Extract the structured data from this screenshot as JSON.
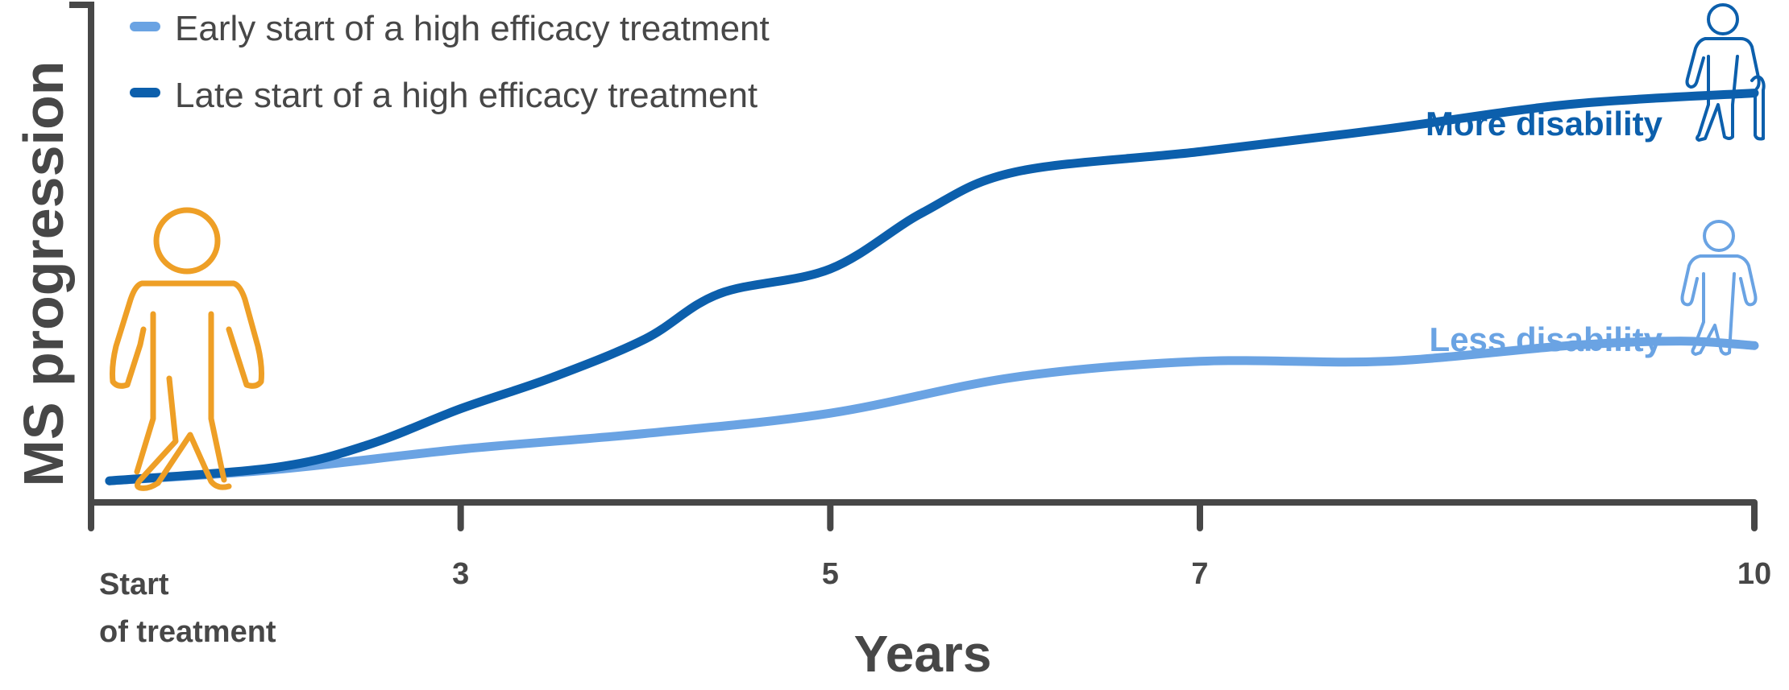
{
  "chart_data": {
    "type": "line",
    "title": "",
    "xlabel": "Years",
    "ylabel": "MS progression",
    "xlim": [
      1,
      10
    ],
    "ylim": [
      0,
      10
    ],
    "x_ticks": [
      {
        "value": 1,
        "label": "Start of treatment",
        "lines": [
          "Start",
          "of treatment"
        ]
      },
      {
        "value": 3,
        "label": "3"
      },
      {
        "value": 5,
        "label": "5"
      },
      {
        "value": 7,
        "label": "7"
      },
      {
        "value": 10,
        "label": "10"
      }
    ],
    "series": [
      {
        "name": "Early start of a high efficacy treatment",
        "color": "#6aa3e3",
        "x": [
          1.1,
          2.0,
          3.0,
          4.0,
          5.0,
          6.0,
          7.0,
          8.0,
          9.0,
          9.6,
          10.0
        ],
        "values": [
          0.05,
          0.3,
          0.75,
          1.1,
          1.55,
          2.35,
          2.7,
          2.7,
          3.05,
          3.15,
          3.05
        ]
      },
      {
        "name": "Late start of a high efficacy treatment",
        "color": "#0c5fac",
        "x": [
          1.1,
          2.0,
          2.5,
          3.0,
          3.5,
          4.0,
          4.4,
          5.0,
          5.5,
          6.0,
          7.0,
          8.0,
          9.0,
          10.0
        ],
        "values": [
          0.05,
          0.35,
          0.85,
          1.65,
          2.35,
          3.2,
          4.2,
          4.75,
          6.0,
          6.9,
          7.35,
          7.85,
          8.4,
          8.65
        ]
      }
    ],
    "annotations": [
      {
        "text": "More disability",
        "color": "#0c5fac"
      },
      {
        "text": "Less disability",
        "color": "#6aa3e3"
      }
    ],
    "legend": {
      "position": "top-left"
    },
    "grid": false
  },
  "colors": {
    "axis": "#474747",
    "start_figure": "#ee9f26",
    "more_figure": "#0c5fac",
    "less_figure": "#6aa3e3"
  },
  "icons": {
    "start": "person-standing-icon",
    "more": "person-with-cane-icon",
    "less": "person-walking-icon"
  }
}
